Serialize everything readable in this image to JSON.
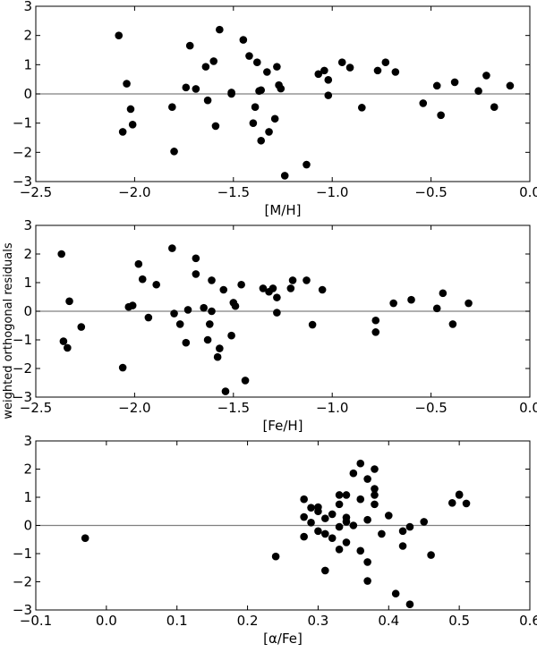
{
  "figure": {
    "ylabel": "weighted orthogonal residuals"
  },
  "chart_data": [
    {
      "type": "scatter",
      "xlabel": "[M/H]",
      "xlim": [
        -2.5,
        0.0
      ],
      "ylim": [
        -3,
        3
      ],
      "xticks": [
        -2.5,
        -2.0,
        -1.5,
        -1.0,
        -0.5,
        0.0
      ],
      "xtick_labels": [
        "−2.5",
        "−2.0",
        "−1.5",
        "−1.0",
        "−0.5",
        "0.0"
      ],
      "yticks": [
        -3,
        -2,
        -1,
        0,
        1,
        2,
        3
      ],
      "ytick_labels": [
        "−3",
        "−2",
        "−1",
        "0",
        "1",
        "2",
        "3"
      ],
      "reference_line": 0,
      "marker_color": "#000000",
      "line_color": "#808080",
      "points": [
        [
          -2.08,
          2.0
        ],
        [
          -2.06,
          -1.3
        ],
        [
          -2.04,
          0.35
        ],
        [
          -2.02,
          -0.52
        ],
        [
          -2.01,
          -1.05
        ],
        [
          -1.81,
          -0.45
        ],
        [
          -1.8,
          -1.97
        ],
        [
          -1.74,
          0.22
        ],
        [
          -1.72,
          1.65
        ],
        [
          -1.69,
          0.17
        ],
        [
          -1.64,
          0.93
        ],
        [
          -1.63,
          -0.22
        ],
        [
          -1.6,
          1.12
        ],
        [
          -1.59,
          -1.1
        ],
        [
          -1.57,
          2.2
        ],
        [
          -1.51,
          0.05
        ],
        [
          -1.51,
          0.0
        ],
        [
          -1.45,
          1.85
        ],
        [
          -1.42,
          1.3
        ],
        [
          -1.4,
          -1.0
        ],
        [
          -1.39,
          -0.45
        ],
        [
          -1.38,
          1.08
        ],
        [
          -1.37,
          0.1
        ],
        [
          -1.36,
          -1.6
        ],
        [
          -1.36,
          0.13
        ],
        [
          -1.33,
          0.75
        ],
        [
          -1.32,
          -1.3
        ],
        [
          -1.29,
          -0.85
        ],
        [
          -1.28,
          0.93
        ],
        [
          -1.27,
          0.3
        ],
        [
          -1.26,
          0.18
        ],
        [
          -1.24,
          -2.8
        ],
        [
          -1.13,
          -2.42
        ],
        [
          -1.07,
          0.68
        ],
        [
          -1.04,
          0.8
        ],
        [
          -1.02,
          0.48
        ],
        [
          -1.02,
          -0.05
        ],
        [
          -0.95,
          1.08
        ],
        [
          -0.91,
          0.9
        ],
        [
          -0.85,
          -0.47
        ],
        [
          -0.77,
          0.8
        ],
        [
          -0.73,
          1.08
        ],
        [
          -0.68,
          0.75
        ],
        [
          -0.54,
          -0.32
        ],
        [
          -0.47,
          0.28
        ],
        [
          -0.45,
          -0.73
        ],
        [
          -0.38,
          0.4
        ],
        [
          -0.26,
          0.1
        ],
        [
          -0.22,
          0.63
        ],
        [
          -0.18,
          -0.45
        ],
        [
          -0.1,
          0.28
        ]
      ]
    },
    {
      "type": "scatter",
      "xlabel": "[Fe/H]",
      "xlim": [
        -2.5,
        0.0
      ],
      "ylim": [
        -3,
        3
      ],
      "xticks": [
        -2.5,
        -2.0,
        -1.5,
        -1.0,
        -0.5,
        0.0
      ],
      "xtick_labels": [
        "−2.5",
        "−2.0",
        "−1.5",
        "−1.0",
        "−0.5",
        "0.0"
      ],
      "yticks": [
        -3,
        -2,
        -1,
        0,
        1,
        2,
        3
      ],
      "ytick_labels": [
        "−3",
        "−2",
        "−1",
        "0",
        "1",
        "2",
        "3"
      ],
      "reference_line": 0,
      "marker_color": "#000000",
      "line_color": "#808080",
      "points": [
        [
          -2.37,
          2.0
        ],
        [
          -2.36,
          -1.05
        ],
        [
          -2.34,
          -1.28
        ],
        [
          -2.33,
          0.35
        ],
        [
          -2.27,
          -0.55
        ],
        [
          -2.06,
          -1.97
        ],
        [
          -2.03,
          0.15
        ],
        [
          -2.01,
          0.2
        ],
        [
          -1.98,
          1.65
        ],
        [
          -1.96,
          1.12
        ],
        [
          -1.93,
          -0.22
        ],
        [
          -1.89,
          0.93
        ],
        [
          -1.81,
          2.2
        ],
        [
          -1.8,
          -0.08
        ],
        [
          -1.77,
          -0.45
        ],
        [
          -1.74,
          -1.1
        ],
        [
          -1.73,
          0.05
        ],
        [
          -1.69,
          1.85
        ],
        [
          -1.69,
          1.3
        ],
        [
          -1.65,
          0.12
        ],
        [
          -1.63,
          -1.0
        ],
        [
          -1.62,
          -0.45
        ],
        [
          -1.61,
          0.0
        ],
        [
          -1.61,
          1.08
        ],
        [
          -1.58,
          -1.6
        ],
        [
          -1.57,
          -1.3
        ],
        [
          -1.55,
          0.75
        ],
        [
          -1.54,
          -2.8
        ],
        [
          -1.51,
          -0.85
        ],
        [
          -1.5,
          0.3
        ],
        [
          -1.49,
          0.18
        ],
        [
          -1.46,
          0.93
        ],
        [
          -1.44,
          -2.42
        ],
        [
          -1.35,
          0.8
        ],
        [
          -1.32,
          0.68
        ],
        [
          -1.3,
          0.8
        ],
        [
          -1.28,
          0.48
        ],
        [
          -1.28,
          -0.05
        ],
        [
          -1.21,
          0.8
        ],
        [
          -1.2,
          1.08
        ],
        [
          -1.13,
          1.08
        ],
        [
          -1.1,
          -0.47
        ],
        [
          -1.05,
          0.75
        ],
        [
          -0.78,
          -0.32
        ],
        [
          -0.78,
          -0.73
        ],
        [
          -0.69,
          0.28
        ],
        [
          -0.6,
          0.4
        ],
        [
          -0.47,
          0.1
        ],
        [
          -0.44,
          0.63
        ],
        [
          -0.39,
          -0.45
        ],
        [
          -0.31,
          0.28
        ]
      ]
    },
    {
      "type": "scatter",
      "xlabel": "[α/Fe]",
      "xlim": [
        -0.1,
        0.6
      ],
      "ylim": [
        -3,
        3
      ],
      "xticks": [
        -0.1,
        0.0,
        0.1,
        0.2,
        0.3,
        0.4,
        0.5,
        0.6
      ],
      "xtick_labels": [
        "−0.1",
        "0.0",
        "0.1",
        "0.2",
        "0.3",
        "0.4",
        "0.5",
        "0.6"
      ],
      "yticks": [
        -3,
        -2,
        -1,
        0,
        1,
        2,
        3
      ],
      "ytick_labels": [
        "−3",
        "−2",
        "−1",
        "0",
        "1",
        "2",
        "3"
      ],
      "reference_line": 0,
      "marker_color": "#000000",
      "line_color": "#808080",
      "points": [
        [
          -0.03,
          -0.45
        ],
        [
          0.24,
          -1.1
        ],
        [
          0.28,
          0.93
        ],
        [
          0.28,
          0.3
        ],
        [
          0.28,
          -0.4
        ],
        [
          0.29,
          0.63
        ],
        [
          0.29,
          0.1
        ],
        [
          0.3,
          0.5
        ],
        [
          0.3,
          -0.2
        ],
        [
          0.3,
          0.65
        ],
        [
          0.31,
          -0.3
        ],
        [
          0.31,
          -1.6
        ],
        [
          0.31,
          0.25
        ],
        [
          0.32,
          0.4
        ],
        [
          0.32,
          -0.45
        ],
        [
          0.33,
          1.08
        ],
        [
          0.33,
          0.75
        ],
        [
          0.33,
          -0.05
        ],
        [
          0.33,
          -0.85
        ],
        [
          0.34,
          0.28
        ],
        [
          0.34,
          1.08
        ],
        [
          0.34,
          0.13
        ],
        [
          0.34,
          -0.6
        ],
        [
          0.35,
          1.85
        ],
        [
          0.35,
          0.0
        ],
        [
          0.36,
          2.2
        ],
        [
          0.36,
          0.93
        ],
        [
          0.36,
          -0.9
        ],
        [
          0.37,
          0.2
        ],
        [
          0.37,
          1.65
        ],
        [
          0.37,
          -1.97
        ],
        [
          0.37,
          -1.3
        ],
        [
          0.38,
          1.08
        ],
        [
          0.38,
          2.0
        ],
        [
          0.38,
          1.3
        ],
        [
          0.38,
          0.75
        ],
        [
          0.39,
          -0.3
        ],
        [
          0.4,
          0.35
        ],
        [
          0.41,
          -2.42
        ],
        [
          0.42,
          -0.2
        ],
        [
          0.42,
          -0.73
        ],
        [
          0.43,
          -2.8
        ],
        [
          0.43,
          -0.05
        ],
        [
          0.45,
          0.13
        ],
        [
          0.46,
          -1.05
        ],
        [
          0.49,
          0.8
        ],
        [
          0.5,
          1.08
        ],
        [
          0.5,
          1.1
        ],
        [
          0.51,
          0.78
        ]
      ]
    }
  ]
}
